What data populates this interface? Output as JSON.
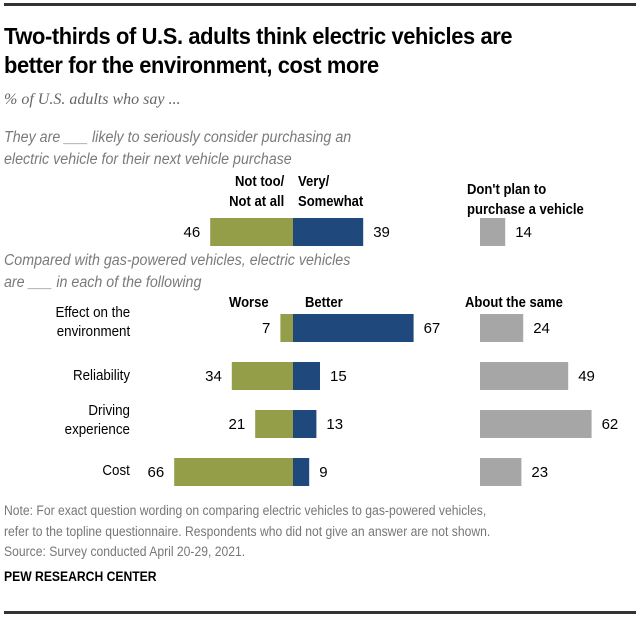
{
  "header": {
    "title_line1": "Two-thirds of U.S. adults think electric vehicles are",
    "title_line2": "better for the environment, cost more",
    "subtitle": "% of U.S. adults who say ..."
  },
  "colors": {
    "negative": "#949d48",
    "positive": "#1f497d",
    "neutral": "#a6a6a6"
  },
  "chart_data": [
    {
      "type": "bar",
      "orientation": "horizontal-diverging",
      "question_line1": "They are ___ likely to seriously consider purchasing an",
      "question_line2": "electric vehicle for their next vehicle purchase",
      "negative_label_line1": "Not too/",
      "negative_label_line2": "Not at all",
      "positive_label_line1": "Very/",
      "positive_label_line2": "Somewhat",
      "neutral_label_line1": "Don't plan to",
      "neutral_label_line2": "purchase a vehicle",
      "categories": [
        ""
      ],
      "series": [
        {
          "name": "Not too/Not at all",
          "values": [
            46
          ]
        },
        {
          "name": "Very/Somewhat",
          "values": [
            39
          ]
        },
        {
          "name": "Don't plan to purchase a vehicle",
          "values": [
            14
          ]
        }
      ]
    },
    {
      "type": "bar",
      "orientation": "horizontal-diverging",
      "question_line1": "Compared with gas-powered vehicles, electric vehicles",
      "question_line2": "are ___ in each of the following",
      "negative_label": "Worse",
      "positive_label": "Better",
      "neutral_label": "About the same",
      "categories": [
        {
          "line1": "Effect on the",
          "line2": "environment"
        },
        {
          "line1": "Reliability",
          "line2": ""
        },
        {
          "line1": "Driving",
          "line2": "experience"
        },
        {
          "line1": "Cost",
          "line2": ""
        }
      ],
      "series": [
        {
          "name": "Worse",
          "values": [
            7,
            34,
            21,
            66
          ]
        },
        {
          "name": "Better",
          "values": [
            67,
            15,
            13,
            9
          ]
        },
        {
          "name": "About the same",
          "values": [
            24,
            49,
            62,
            23
          ]
        }
      ]
    }
  ],
  "footer": {
    "note_line1": "Note: For exact question wording on comparing electric vehicles to gas-powered vehicles,",
    "note_line2": "refer to the topline questionnaire. Respondents who did not give an answer are not shown.",
    "source": "Source: Survey conducted April 20-29, 2021.",
    "brand": "PEW RESEARCH CENTER"
  }
}
